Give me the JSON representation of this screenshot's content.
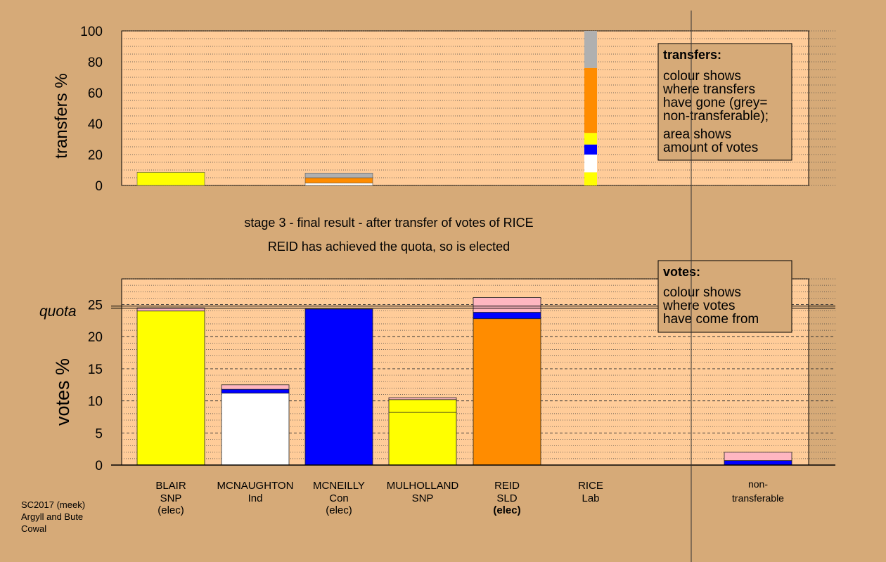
{
  "chart_data": [
    {
      "type": "bar",
      "stacked": true,
      "panel": "transfers",
      "ylabel": "transfers %",
      "ylim": [
        0,
        100
      ],
      "yticks": [
        0,
        20,
        40,
        60,
        80,
        100
      ],
      "categories": [
        "BLAIR",
        "MCNAUGHTON",
        "MCNEILLY",
        "MULHOLLAND",
        "REID",
        "RICE"
      ],
      "bars": [
        {
          "category": "BLAIR",
          "segments": [
            {
              "color": "#ffff00",
              "value": 8.5
            }
          ]
        },
        {
          "category": "MCNEILLY",
          "segments": [
            {
              "color": "#ffffff",
              "value": 1.5
            },
            {
              "color": "#ff8c00",
              "value": 3.5
            },
            {
              "color": "#b0b0b0",
              "value": 3.0
            }
          ]
        },
        {
          "category": "RICE",
          "segments": [
            {
              "color": "#ffff00",
              "value": 8.5
            },
            {
              "color": "#ffffff",
              "value": 11.5
            },
            {
              "color": "#0000ff",
              "value": 6.5
            },
            {
              "color": "#ffff00",
              "value": 7.5
            },
            {
              "color": "#ff8c00",
              "value": 42.0
            },
            {
              "color": "#b0b0b0",
              "value": 24.0
            }
          ]
        }
      ],
      "legend": {
        "title": "transfers:",
        "lines1": [
          "colour shows",
          "where transfers",
          "have gone (grey=",
          "non-transferable);"
        ],
        "lines2": [
          "area shows",
          "amount of votes"
        ]
      }
    },
    {
      "type": "bar",
      "stacked": true,
      "panel": "votes",
      "ylabel": "votes %",
      "ylim": [
        0,
        29
      ],
      "yticks": [
        0,
        5,
        10,
        15,
        20,
        25
      ],
      "quota": 24.6,
      "quota_label": "quota",
      "categories": [
        "BLAIR",
        "MCNAUGHTON",
        "MCNEILLY",
        "MULHOLLAND",
        "REID",
        "RICE",
        "non-transferable"
      ],
      "bars": [
        {
          "category": "BLAIR",
          "segments": [
            {
              "color": "#ffff00",
              "value": 24.0
            },
            {
              "color": "#ffb6c1",
              "value": 0.5
            }
          ]
        },
        {
          "category": "MCNAUGHTON",
          "segments": [
            {
              "color": "#ffffff",
              "value": 11.2
            },
            {
              "color": "#0000ff",
              "value": 0.6
            },
            {
              "color": "#ffb6c1",
              "value": 0.7
            }
          ]
        },
        {
          "category": "MCNEILLY",
          "segments": [
            {
              "color": "#0000ff",
              "value": 24.3
            }
          ]
        },
        {
          "category": "MULHOLLAND",
          "segments": [
            {
              "color": "#ffff00",
              "value": 8.2
            },
            {
              "color": "#ffff00",
              "value": 2.0
            },
            {
              "color": "#ffb6c1",
              "value": 0.3
            }
          ]
        },
        {
          "category": "REID",
          "segments": [
            {
              "color": "#ff8c00",
              "value": 22.8
            },
            {
              "color": "#0000ff",
              "value": 1.0
            },
            {
              "color": "#ffb6c1",
              "value": 2.3
            }
          ]
        },
        {
          "category": "non-transferable",
          "segments": [
            {
              "color": "#0000ff",
              "value": 0.7
            },
            {
              "color": "#ffb6c1",
              "value": 1.3
            }
          ]
        }
      ],
      "legend": {
        "title": "votes:",
        "lines1": [
          "colour shows",
          "where votes",
          "have come from"
        ]
      }
    }
  ],
  "heading": {
    "line1": "stage 3 - final result - after transfer of votes of RICE",
    "line2": "REID has achieved the quota, so is elected"
  },
  "candidates": [
    {
      "name": "BLAIR",
      "party": "SNP",
      "status": "(elec)",
      "status_bold": false
    },
    {
      "name": "MCNAUGHTON",
      "party": "Ind",
      "status": "",
      "status_bold": false
    },
    {
      "name": "MCNEILLY",
      "party": "Con",
      "status": "(elec)",
      "status_bold": false
    },
    {
      "name": "MULHOLLAND",
      "party": "SNP",
      "status": "",
      "status_bold": false
    },
    {
      "name": "REID",
      "party": "SLD",
      "status": "(elec)",
      "status_bold": true
    },
    {
      "name": "RICE",
      "party": "Lab",
      "status": "",
      "status_bold": false
    }
  ],
  "nontransferable_label": [
    "non-",
    "transferable"
  ],
  "footer": [
    "SC2017 (meek)",
    "Argyll and Bute",
    "Cowal"
  ],
  "colors": {
    "background": "#d6aa78",
    "plot_area": "#ffcc99",
    "legend_box": "#d6aa78"
  }
}
